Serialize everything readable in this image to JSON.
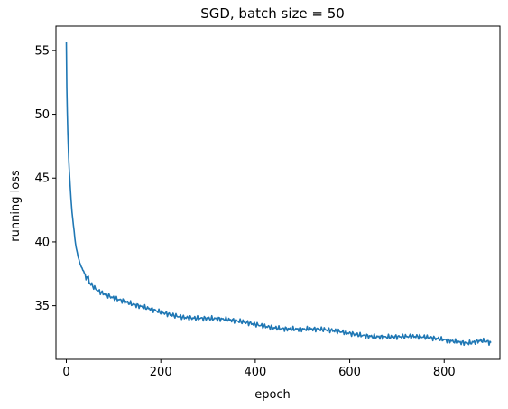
{
  "chart_data": {
    "type": "line",
    "title": "SGD, batch size = 50",
    "xlabel": "epoch",
    "ylabel": "running loss",
    "xlim": [
      -22,
      918
    ],
    "ylim": [
      30.8,
      56.9
    ],
    "xticks": [
      0,
      200,
      400,
      600,
      800
    ],
    "yticks": [
      35,
      40,
      45,
      50,
      55
    ],
    "grid": false,
    "legend": "none",
    "series": [
      {
        "color": "#1f77b4",
        "x": [
          0,
          1,
          2,
          3,
          4,
          5,
          6,
          8,
          10,
          12,
          15,
          18,
          21,
          25,
          30,
          35,
          40,
          45,
          50,
          60,
          70,
          80,
          90,
          100,
          120,
          140,
          160,
          180,
          200,
          250,
          300,
          350,
          400,
          450,
          500,
          550,
          600,
          650,
          700,
          750,
          800,
          850,
          899
        ],
        "y": [
          55.6,
          52.0,
          50.2,
          48.7,
          47.6,
          46.6,
          45.8,
          44.5,
          43.3,
          42.4,
          41.3,
          40.3,
          39.5,
          38.8,
          38.2,
          37.8,
          37.4,
          37.1,
          36.9,
          36.5,
          36.2,
          36.0,
          35.8,
          35.6,
          35.3,
          35.0,
          34.8,
          34.65,
          34.5,
          34.2,
          34.0,
          33.75,
          33.55,
          33.35,
          33.15,
          33.0,
          32.85,
          32.7,
          32.55,
          32.45,
          32.35,
          32.2,
          32.1
        ]
      }
    ]
  }
}
